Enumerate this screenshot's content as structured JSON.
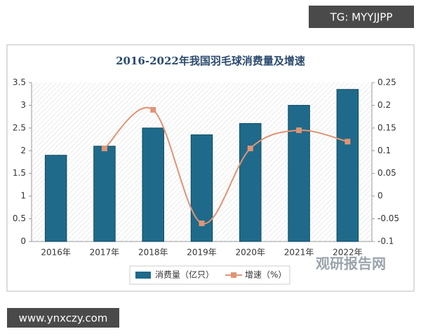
{
  "watermarks": {
    "top": "TG: MYYJJPP",
    "bottom": "www.ynxczy.com",
    "logo": "观研报告网"
  },
  "chart_data": {
    "type": "bar",
    "title": "2016-2022年我国羽毛球消费量及增速",
    "categories": [
      "2016年",
      "2017年",
      "2018年",
      "2019年",
      "2020年",
      "2021年",
      "2022年"
    ],
    "series": [
      {
        "name": "消费量（亿只）",
        "type": "bar",
        "color": "#1f6a8a",
        "values": [
          1.9,
          2.1,
          2.5,
          2.35,
          2.6,
          3.0,
          3.35
        ]
      },
      {
        "name": "增速（%）",
        "type": "line",
        "color": "#e09474",
        "axis": "y2",
        "values": [
          null,
          0.105,
          0.19,
          -0.06,
          0.105,
          0.145,
          0.12
        ]
      }
    ],
    "ylim": [
      0,
      3.5
    ],
    "yticks": [
      0,
      0.5,
      1,
      1.5,
      2,
      2.5,
      3,
      3.5
    ],
    "y2lim": [
      -0.1,
      0.25
    ],
    "y2ticks": [
      -0.1,
      -0.05,
      0,
      0.05,
      0.1,
      0.15,
      0.2,
      0.25
    ],
    "legend": "bottom"
  }
}
